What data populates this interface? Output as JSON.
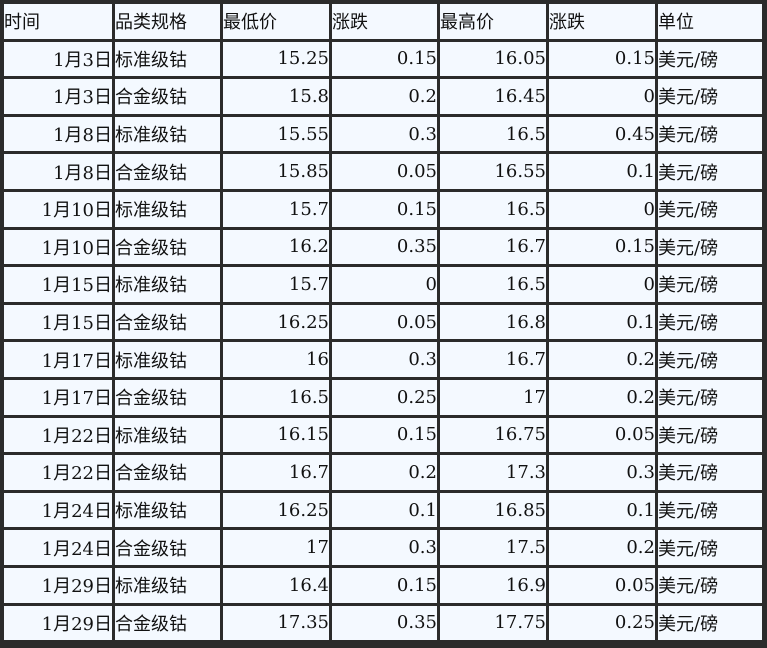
{
  "headers": [
    "时间",
    "品类规格",
    "最低价",
    "涨跌",
    "最高价",
    "涨跌",
    "单位"
  ],
  "rows": [
    [
      "1月3日",
      "标准级钴",
      "15.25",
      "0.15",
      "16.05",
      "0.15",
      "美元/磅"
    ],
    [
      "1月3日",
      "合金级钴",
      "15.8",
      "0.2",
      "16.45",
      "0",
      "美元/磅"
    ],
    [
      "1月8日",
      "标准级钴",
      "15.55",
      "0.3",
      "16.5",
      "0.45",
      "美元/磅"
    ],
    [
      "1月8日",
      "合金级钴",
      "15.85",
      "0.05",
      "16.55",
      "0.1",
      "美元/磅"
    ],
    [
      "1月10日",
      "标准级钴",
      "15.7",
      "0.15",
      "16.5",
      "0",
      "美元/磅"
    ],
    [
      "1月10日",
      "合金级钴",
      "16.2",
      "0.35",
      "16.7",
      "0.15",
      "美元/磅"
    ],
    [
      "1月15日",
      "标准级钴",
      "15.7",
      "0",
      "16.5",
      "0",
      "美元/磅"
    ],
    [
      "1月15日",
      "合金级钴",
      "16.25",
      "0.05",
      "16.8",
      "0.1",
      "美元/磅"
    ],
    [
      "1月17日",
      "标准级钴",
      "16",
      "0.3",
      "16.7",
      "0.2",
      "美元/磅"
    ],
    [
      "1月17日",
      "合金级钴",
      "16.5",
      "0.25",
      "17",
      "0.2",
      "美元/磅"
    ],
    [
      "1月22日",
      "标准级钴",
      "16.15",
      "0.15",
      "16.75",
      "0.05",
      "美元/磅"
    ],
    [
      "1月22日",
      "合金级钴",
      "16.7",
      "0.2",
      "17.3",
      "0.3",
      "美元/磅"
    ],
    [
      "1月24日",
      "标准级钴",
      "16.25",
      "0.1",
      "16.85",
      "0.1",
      "美元/磅"
    ],
    [
      "1月24日",
      "合金级钴",
      "17",
      "0.3",
      "17.5",
      "0.2",
      "美元/磅"
    ],
    [
      "1月29日",
      "标准级钴",
      "16.4",
      "0.15",
      "16.9",
      "0.05",
      "美元/磅"
    ],
    [
      "1月29日",
      "合金级钴",
      "17.35",
      "0.35",
      "17.75",
      "0.25",
      "美元/磅"
    ]
  ]
}
